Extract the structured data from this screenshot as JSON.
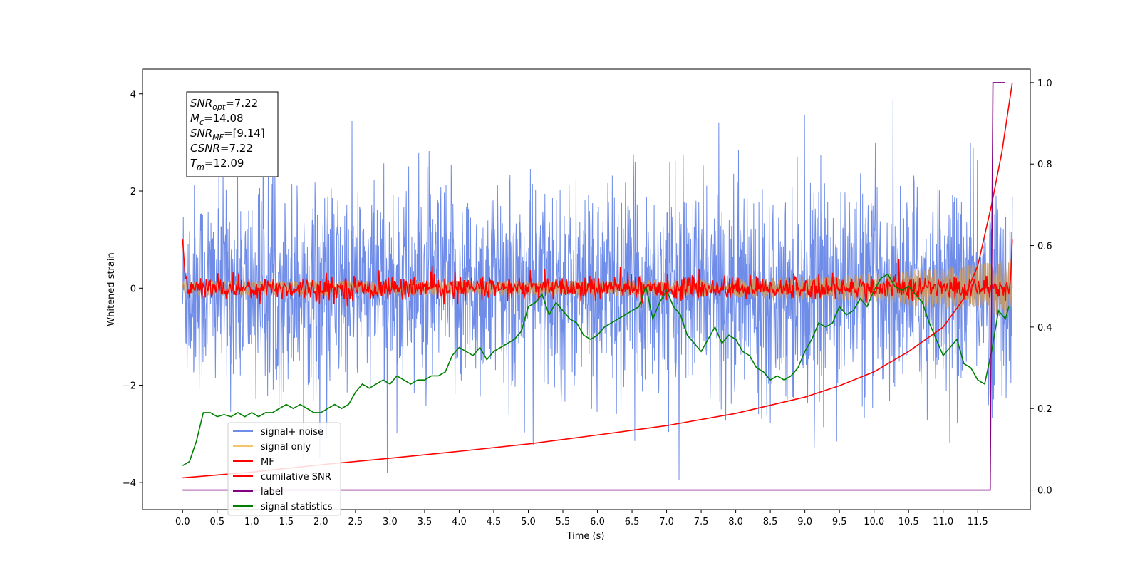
{
  "chart_data": {
    "type": "line",
    "xlabel": "Time (s)",
    "ylabel": "Whitened strain",
    "y2label": "",
    "xlim": [
      -0.58,
      12.26
    ],
    "ylim": [
      -4.56,
      4.51
    ],
    "y2lim": [
      -0.048,
      1.033
    ],
    "x_ticks": [
      0.0,
      0.5,
      1.0,
      1.5,
      2.0,
      2.5,
      3.0,
      3.5,
      4.0,
      4.5,
      5.0,
      5.5,
      6.0,
      6.5,
      7.0,
      7.5,
      8.0,
      8.5,
      9.0,
      9.5,
      10.0,
      10.5,
      11.0,
      11.5
    ],
    "x_tick_labels": [
      "0.0",
      "0.5",
      "1.0",
      "1.5",
      "2.0",
      "2.5",
      "3.0",
      "3.5",
      "4.0",
      "4.5",
      "5.0",
      "5.5",
      "6.0",
      "6.5",
      "7.0",
      "7.5",
      "8.0",
      "8.5",
      "9.0",
      "9.5",
      "10.0",
      "10.5",
      "11.0",
      "11.5"
    ],
    "y_ticks": [
      -4,
      -2,
      0,
      2,
      4
    ],
    "y_tick_labels": [
      "−4",
      "−2",
      "0",
      "2",
      "4"
    ],
    "y2_ticks": [
      0.0,
      0.2,
      0.4,
      0.6,
      0.8,
      1.0
    ],
    "y2_tick_labels": [
      "0.0",
      "0.2",
      "0.4",
      "0.6",
      "0.8",
      "1.0"
    ],
    "grid": false,
    "legend_position": "lower-left",
    "series": [
      {
        "name": "signal+ noise",
        "axis": "left",
        "color": "#6f8de8",
        "style": "noise",
        "x_range": [
          0.0,
          12.0
        ],
        "mean": 0.0,
        "std": 1.0,
        "peaks": [
          4.0,
          -4.2
        ]
      },
      {
        "name": "signal only",
        "axis": "left",
        "color": "#f5c56b",
        "style": "chirp",
        "x_range": [
          0.0,
          12.0
        ],
        "amplitude_start": 0.15,
        "amplitude_end": 0.6
      },
      {
        "name": "MF",
        "axis": "left",
        "color": "#ff0000",
        "style": "matched-filter",
        "x_range": [
          0.0,
          12.0
        ],
        "start_value": 1.0,
        "end_value": 1.0,
        "baseline": 0.0,
        "spread": 0.12
      },
      {
        "name": "cumilative SNR",
        "axis": "right",
        "color": "#ff0000",
        "x": [
          0.0,
          0.5,
          1.0,
          2.0,
          3.0,
          4.0,
          5.0,
          6.0,
          7.0,
          8.0,
          9.0,
          9.5,
          10.0,
          10.5,
          11.0,
          11.3,
          11.5,
          11.7,
          11.85,
          12.0
        ],
        "values": [
          0.03,
          0.037,
          0.044,
          0.062,
          0.078,
          0.095,
          0.113,
          0.135,
          0.158,
          0.188,
          0.228,
          0.256,
          0.29,
          0.34,
          0.4,
          0.47,
          0.55,
          0.7,
          0.83,
          1.0
        ]
      },
      {
        "name": "label",
        "axis": "right",
        "color": "#800080",
        "x": [
          0.0,
          11.68,
          11.72,
          11.9
        ],
        "values": [
          0.0,
          0.0,
          1.0,
          1.0
        ]
      },
      {
        "name": "signal statistics",
        "axis": "right",
        "color": "#008000",
        "x": [
          0.0,
          0.1,
          0.2,
          0.3,
          0.4,
          0.5,
          0.6,
          0.7,
          0.8,
          0.9,
          1.0,
          1.1,
          1.2,
          1.3,
          1.4,
          1.5,
          1.6,
          1.7,
          1.8,
          1.9,
          2.0,
          2.1,
          2.2,
          2.3,
          2.4,
          2.5,
          2.6,
          2.7,
          2.8,
          2.9,
          3.0,
          3.1,
          3.2,
          3.3,
          3.4,
          3.5,
          3.6,
          3.7,
          3.8,
          3.9,
          4.0,
          4.1,
          4.2,
          4.3,
          4.4,
          4.5,
          4.6,
          4.7,
          4.8,
          4.9,
          5.0,
          5.1,
          5.2,
          5.3,
          5.4,
          5.5,
          5.6,
          5.7,
          5.8,
          5.9,
          6.0,
          6.1,
          6.2,
          6.3,
          6.4,
          6.5,
          6.6,
          6.7,
          6.8,
          6.9,
          7.0,
          7.1,
          7.2,
          7.3,
          7.4,
          7.5,
          7.6,
          7.7,
          7.8,
          7.9,
          8.0,
          8.1,
          8.2,
          8.3,
          8.4,
          8.5,
          8.6,
          8.7,
          8.8,
          8.9,
          9.0,
          9.1,
          9.2,
          9.3,
          9.4,
          9.5,
          9.6,
          9.7,
          9.8,
          9.9,
          10.0,
          10.1,
          10.2,
          10.3,
          10.4,
          10.5,
          10.6,
          10.7,
          10.8,
          10.9,
          11.0,
          11.1,
          11.2,
          11.3,
          11.4,
          11.5,
          11.6,
          11.7,
          11.8,
          11.9,
          11.95
        ],
        "values": [
          0.06,
          0.07,
          0.12,
          0.19,
          0.19,
          0.18,
          0.185,
          0.18,
          0.19,
          0.18,
          0.19,
          0.18,
          0.19,
          0.19,
          0.2,
          0.21,
          0.2,
          0.21,
          0.2,
          0.19,
          0.19,
          0.2,
          0.21,
          0.2,
          0.21,
          0.24,
          0.26,
          0.25,
          0.26,
          0.27,
          0.26,
          0.28,
          0.27,
          0.26,
          0.27,
          0.27,
          0.28,
          0.28,
          0.29,
          0.33,
          0.35,
          0.34,
          0.33,
          0.35,
          0.32,
          0.34,
          0.35,
          0.36,
          0.37,
          0.39,
          0.45,
          0.46,
          0.48,
          0.43,
          0.46,
          0.44,
          0.42,
          0.41,
          0.38,
          0.37,
          0.38,
          0.4,
          0.41,
          0.42,
          0.43,
          0.44,
          0.45,
          0.5,
          0.42,
          0.46,
          0.49,
          0.45,
          0.43,
          0.38,
          0.36,
          0.34,
          0.37,
          0.4,
          0.36,
          0.38,
          0.37,
          0.34,
          0.33,
          0.3,
          0.29,
          0.27,
          0.28,
          0.27,
          0.28,
          0.3,
          0.34,
          0.37,
          0.41,
          0.4,
          0.41,
          0.45,
          0.43,
          0.44,
          0.47,
          0.45,
          0.49,
          0.52,
          0.53,
          0.5,
          0.49,
          0.5,
          0.48,
          0.46,
          0.41,
          0.37,
          0.33,
          0.35,
          0.37,
          0.31,
          0.3,
          0.27,
          0.26,
          0.34,
          0.44,
          0.42,
          0.45
        ]
      }
    ],
    "annotations": [
      {
        "label": "SNR",
        "sub": "opt",
        "value": "=7.22"
      },
      {
        "label": "M",
        "sub": "c",
        "value": "=14.08"
      },
      {
        "label": "SNR",
        "sub": "MF",
        "value": "=[9.14]"
      },
      {
        "label": "CSNR",
        "sub": "",
        "value": "=7.22"
      },
      {
        "label": "T",
        "sub": "m",
        "value": "=12.09"
      }
    ]
  }
}
